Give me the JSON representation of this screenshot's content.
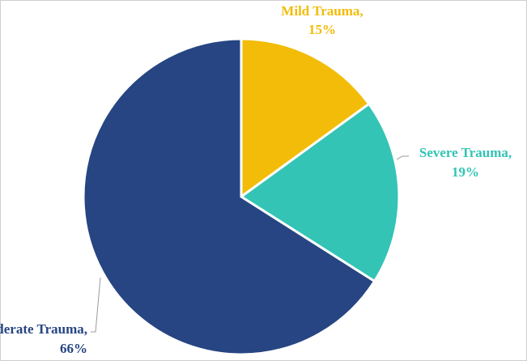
{
  "chart_data": {
    "type": "pie",
    "categories": [
      "Mild Trauma,",
      "Severe Trauma,",
      "Moderate Trauma,"
    ],
    "values": [
      15,
      19,
      66
    ],
    "value_labels": [
      "15%",
      "19%",
      "66%"
    ],
    "colors": [
      "#f2bc09",
      "#33c4b5",
      "#264582"
    ]
  }
}
